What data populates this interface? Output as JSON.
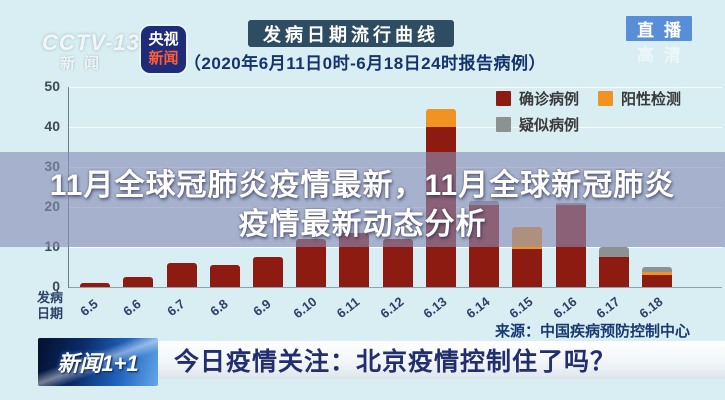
{
  "watermark": {
    "channel": "CCTV-13",
    "channel_sub": "新闻",
    "hd_label": "高清"
  },
  "badges": {
    "app_line1": "央视",
    "app_line2": "新闻",
    "live_label": "直播"
  },
  "header": {
    "title": "发病日期流行曲线",
    "subtitle": "（2020年6月11日0时-6月18日24时报告病例）"
  },
  "overlay": {
    "line1": "11月全球冠肺炎疫情最新，11月全球新冠肺炎",
    "line2": "疫情最新动态分析"
  },
  "axis_title": {
    "line1": "发病",
    "line2": "日期"
  },
  "source": {
    "label": "来源：中国疾病预防控制中心"
  },
  "ticker": {
    "logo": "新闻1+1",
    "headline": "今日疫情关注：北京疫情控制住了吗？"
  },
  "chart_data": {
    "type": "bar",
    "stacked": true,
    "title": "发病日期流行曲线",
    "xlabel": "发病日期",
    "ylabel": "",
    "ylim": [
      0,
      50
    ],
    "ytick_step": 10,
    "yticks": [
      "0",
      "10",
      "20",
      "30",
      "40",
      "50"
    ],
    "grid": true,
    "legend_position": "top-right",
    "categories": [
      "6.5",
      "6.6",
      "6.7",
      "6.8",
      "6.9",
      "6.10",
      "6.11",
      "6.12",
      "6.13",
      "6.14",
      "6.15",
      "6.16",
      "6.17",
      "6.18"
    ],
    "series": [
      {
        "name": "确诊病例",
        "color": "#8e1b12",
        "values": [
          1,
          2.5,
          6,
          5.5,
          7.5,
          12,
          13.5,
          12,
          40,
          20.5,
          9.5,
          20.5,
          7.5,
          3
        ]
      },
      {
        "name": "阳性检测",
        "color": "#f09322",
        "values": [
          0,
          0,
          0,
          0,
          0,
          0,
          0,
          0,
          4.5,
          0,
          5.5,
          0,
          0,
          0.8
        ]
      },
      {
        "name": "疑似病例",
        "color": "#8c9292",
        "values": [
          0,
          0,
          0,
          0,
          0,
          0,
          0,
          0,
          0,
          1,
          0,
          0.5,
          2.5,
          1.2
        ]
      }
    ]
  }
}
